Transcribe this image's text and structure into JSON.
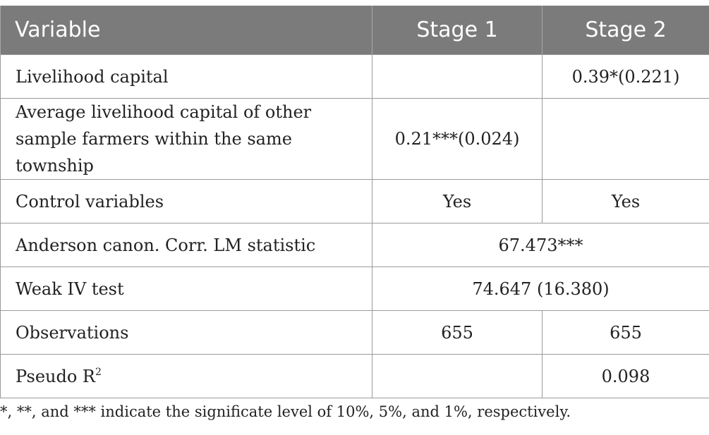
{
  "header": {
    "variable": "Variable",
    "stage1": "Stage 1",
    "stage2": "Stage 2"
  },
  "rows": [
    {
      "label": "Livelihood capital",
      "stage1": "",
      "stage2": "0.39*(0.221)"
    },
    {
      "label_line1": "Average livelihood capital of other",
      "label_line2": "sample farmers within the same township",
      "stage1": "0.21***(0.024)",
      "stage2": ""
    },
    {
      "label": "Control variables",
      "stage1": "Yes",
      "stage2": "Yes"
    },
    {
      "label": "Anderson canon. Corr. LM statistic",
      "merged": "67.473***"
    },
    {
      "label": "Weak IV test",
      "merged": "74.647 (16.380)"
    },
    {
      "label": "Observations",
      "stage1": "655",
      "stage2": "655"
    },
    {
      "label": "Pseudo R",
      "label_sup": "2",
      "stage1": "",
      "stage2": "0.098"
    }
  ],
  "footnote": "*, **, and *** indicate the significate level of 10%, 5%, and 1%, respectively."
}
